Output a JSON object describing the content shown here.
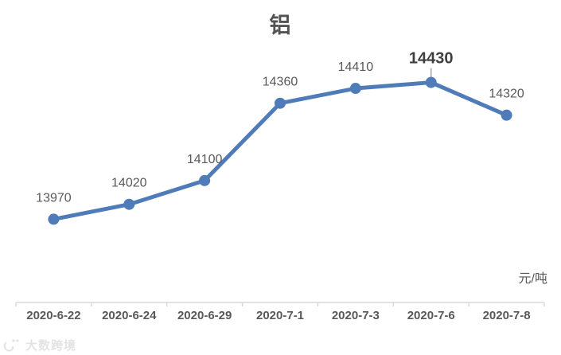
{
  "title": "铝",
  "unit_label": "元/吨",
  "watermark": {
    "text": "大数跨境",
    "icon": "dashu-logo"
  },
  "chart_data": {
    "type": "line",
    "title": "铝",
    "categories": [
      "2020-6-22",
      "2020-6-24",
      "2020-6-29",
      "2020-7-1",
      "2020-7-3",
      "2020-7-6",
      "2020-7-8"
    ],
    "series": [
      {
        "name": "铝",
        "values": [
          13970,
          14020,
          14100,
          14360,
          14410,
          14430,
          14320
        ]
      }
    ],
    "data_labels_shown": true,
    "highlight_index": 5,
    "highlight_value": 14430,
    "xlabel": "",
    "ylabel": "元/吨",
    "ylim": [
      13690,
      14560
    ],
    "grid": false,
    "legend": "none",
    "colors": {
      "line": "#4f7cb8",
      "marker": "#4f7cb8",
      "data_label": "#595959",
      "highlight_label": "#3f3f3f",
      "axis": "#d9d9d9",
      "leader": "#a6a6a6",
      "axis_text": "#595959",
      "watermark": "#e3e3e3"
    }
  }
}
